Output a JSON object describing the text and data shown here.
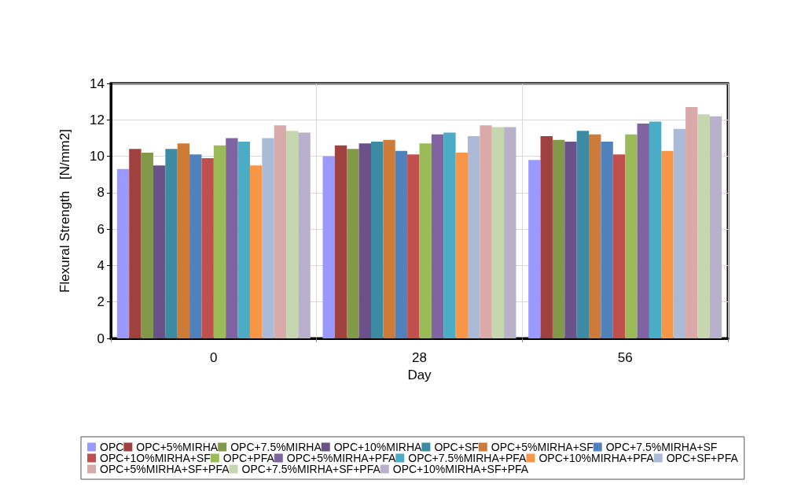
{
  "chart_data": {
    "type": "bar",
    "xlabel": "Day",
    "ylabel": "Flexural Strength   [N/mm2]",
    "categories": [
      "0",
      "28",
      "56"
    ],
    "ylim": [
      0,
      14
    ],
    "yticks": [
      0,
      2,
      4,
      6,
      8,
      10,
      12,
      14
    ],
    "grid": true,
    "legend": "bottom",
    "series": [
      {
        "name": "OPC",
        "color": "#9999ff",
        "values": [
          9.3,
          10.0,
          9.8
        ]
      },
      {
        "name": "OPC+5%MIRHA",
        "color": "#9e413f",
        "values": [
          10.4,
          10.6,
          11.1
        ]
      },
      {
        "name": "OPC+7.5%MIRHA",
        "color": "#82994a",
        "values": [
          10.2,
          10.4,
          10.9
        ]
      },
      {
        "name": "OPC+10%MIRHA",
        "color": "#6a5189",
        "values": [
          9.5,
          10.7,
          10.8
        ]
      },
      {
        "name": "OPC+SF",
        "color": "#3d8ba3",
        "values": [
          10.4,
          10.8,
          11.4
        ]
      },
      {
        "name": "OPC+5%MIRHA+SF",
        "color": "#cc7b38",
        "values": [
          10.7,
          10.9,
          11.2
        ]
      },
      {
        "name": "OPC+7.5%MIRHA+SF",
        "color": "#4f81bd",
        "values": [
          10.1,
          10.3,
          10.8
        ]
      },
      {
        "name": "OPC+1O%MIRHA+SF",
        "color": "#c0504d",
        "values": [
          9.9,
          10.1,
          10.1
        ]
      },
      {
        "name": "OPC+PFA",
        "color": "#9bbb59",
        "values": [
          10.6,
          10.7,
          11.2
        ]
      },
      {
        "name": "OPC+5%MIRHA+PFA",
        "color": "#8064a2",
        "values": [
          11.0,
          11.2,
          11.8
        ]
      },
      {
        "name": "OPC+7.5%MIRHA+PFA",
        "color": "#4bacc6",
        "values": [
          10.8,
          11.3,
          11.9
        ]
      },
      {
        "name": "OPC+10%MIRHA+PFA",
        "color": "#f79646",
        "values": [
          9.5,
          10.2,
          10.3
        ]
      },
      {
        "name": "OPC+SF+PFA",
        "color": "#aabad7",
        "values": [
          11.0,
          11.1,
          11.5
        ]
      },
      {
        "name": "OPC+5%MIRHA+SF+PFA",
        "color": "#d9aaa9",
        "values": [
          11.7,
          11.7,
          12.7
        ]
      },
      {
        "name": "OPC+7.5%MIRHA+SF+PFA",
        "color": "#c6d7b0",
        "values": [
          11.4,
          11.6,
          12.3
        ]
      },
      {
        "name": "OPC+10%MIRHA+SF+PFA",
        "color": "#b9b0cc",
        "values": [
          11.3,
          11.6,
          12.2
        ]
      }
    ]
  }
}
